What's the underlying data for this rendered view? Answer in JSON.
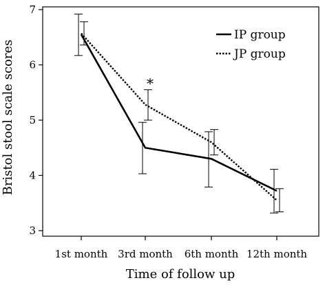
{
  "chart_data": {
    "type": "line",
    "title": "",
    "xlabel": "Time of follow up",
    "ylabel": "Bristol stool scale scores",
    "categories": [
      "1st month",
      "3rd month",
      "6th month",
      "12th month"
    ],
    "ylim": [
      2.9,
      7.05
    ],
    "yticks": [
      3,
      4,
      5,
      6,
      7
    ],
    "ytick_labels": [
      "3",
      "4",
      "5",
      "6",
      "7"
    ],
    "grid": false,
    "legend_position": "top-right",
    "series": [
      {
        "name": "IP group",
        "line_style": "solid",
        "color": "#000000",
        "values": [
          6.55,
          4.5,
          4.3,
          3.72
        ],
        "error_low": [
          6.17,
          4.03,
          3.79,
          3.32
        ],
        "error_high": [
          6.92,
          4.96,
          4.79,
          4.11
        ]
      },
      {
        "name": "JP group",
        "line_style": "dotted",
        "color": "#000000",
        "values": [
          6.57,
          5.28,
          4.6,
          3.55
        ],
        "error_low": [
          6.36,
          5.0,
          4.37,
          3.34
        ],
        "error_high": [
          6.78,
          5.55,
          4.83,
          3.76
        ]
      }
    ],
    "annotations": [
      {
        "text": "*",
        "category": "3rd month",
        "y": 5.68
      }
    ]
  }
}
